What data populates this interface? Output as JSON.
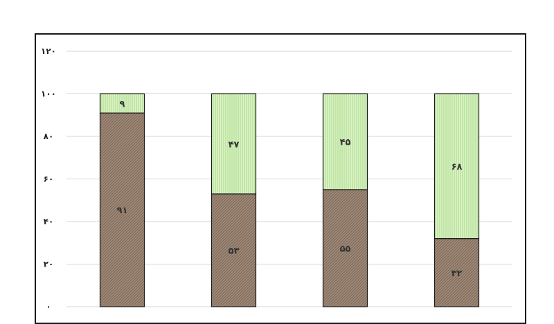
{
  "chart_data": {
    "type": "bar",
    "stacked": true,
    "categories": [
      "",
      "",
      "",
      ""
    ],
    "y_tick_labels": [
      "۰",
      "۲۰",
      "۴۰",
      "۶۰",
      "۸۰",
      "۱۰۰",
      "۱۲۰"
    ],
    "ylim": [
      0,
      120
    ],
    "grid": true,
    "series": [
      {
        "values": [
          91,
          53,
          55,
          32
        ],
        "labels": [
          "۹۱",
          "۵۳",
          "۵۵",
          "۳۲"
        ],
        "color": "#a08a7a",
        "pattern": "diagonal-hatch"
      },
      {
        "values": [
          9,
          47,
          45,
          68
        ],
        "labels": [
          "۹",
          "۴۷",
          "۴۵",
          "۶۸"
        ],
        "color": "#c6ecaa",
        "pattern": "vertical-hatch"
      }
    ]
  }
}
